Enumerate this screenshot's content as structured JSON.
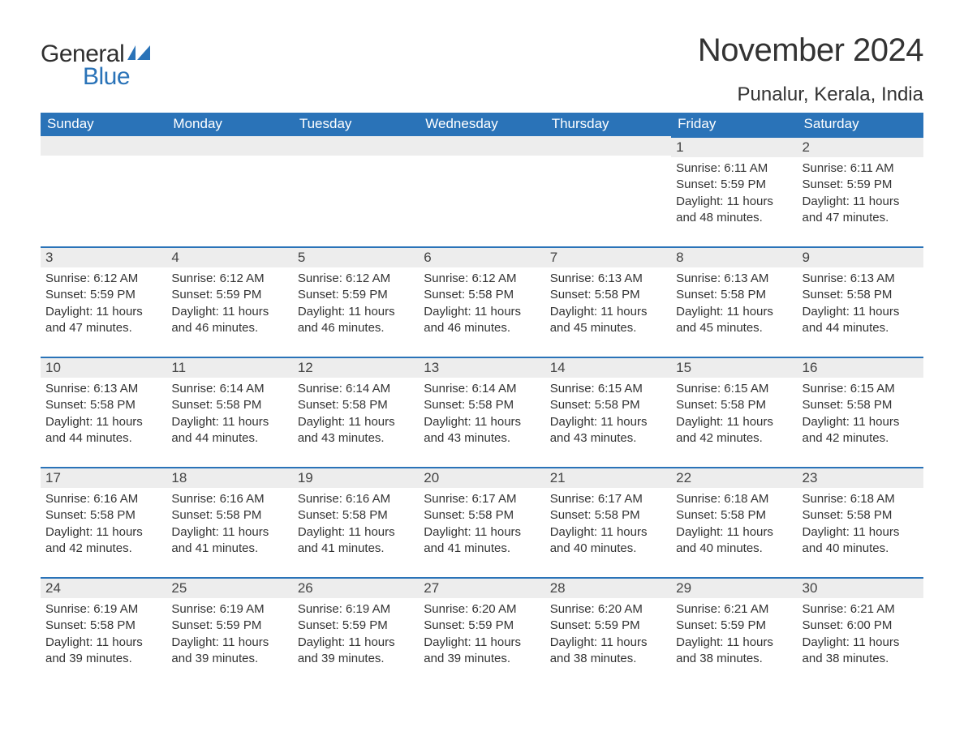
{
  "logo": {
    "general": "General",
    "blue": "Blue",
    "shape_color": "#2a73b8"
  },
  "header": {
    "month_title": "November 2024",
    "location": "Punalur, Kerala, India"
  },
  "colors": {
    "header_bg": "#2a73b8",
    "header_text": "#ffffff",
    "daynum_bg": "#ededed",
    "daynum_border": "#2a73b8",
    "body_text": "#333333",
    "page_bg": "#ffffff"
  },
  "typography": {
    "month_title_fontsize": 40,
    "location_fontsize": 24,
    "weekday_fontsize": 17,
    "daynum_fontsize": 17,
    "body_fontsize": 15,
    "font_family": "Segoe UI, Arial, sans-serif"
  },
  "calendar": {
    "weekdays": [
      "Sunday",
      "Monday",
      "Tuesday",
      "Wednesday",
      "Thursday",
      "Friday",
      "Saturday"
    ],
    "weeks": [
      [
        {
          "day": "",
          "sunrise": "",
          "sunset": "",
          "daylight": ""
        },
        {
          "day": "",
          "sunrise": "",
          "sunset": "",
          "daylight": ""
        },
        {
          "day": "",
          "sunrise": "",
          "sunset": "",
          "daylight": ""
        },
        {
          "day": "",
          "sunrise": "",
          "sunset": "",
          "daylight": ""
        },
        {
          "day": "",
          "sunrise": "",
          "sunset": "",
          "daylight": ""
        },
        {
          "day": "1",
          "sunrise": "Sunrise: 6:11 AM",
          "sunset": "Sunset: 5:59 PM",
          "daylight": "Daylight: 11 hours and 48 minutes."
        },
        {
          "day": "2",
          "sunrise": "Sunrise: 6:11 AM",
          "sunset": "Sunset: 5:59 PM",
          "daylight": "Daylight: 11 hours and 47 minutes."
        }
      ],
      [
        {
          "day": "3",
          "sunrise": "Sunrise: 6:12 AM",
          "sunset": "Sunset: 5:59 PM",
          "daylight": "Daylight: 11 hours and 47 minutes."
        },
        {
          "day": "4",
          "sunrise": "Sunrise: 6:12 AM",
          "sunset": "Sunset: 5:59 PM",
          "daylight": "Daylight: 11 hours and 46 minutes."
        },
        {
          "day": "5",
          "sunrise": "Sunrise: 6:12 AM",
          "sunset": "Sunset: 5:59 PM",
          "daylight": "Daylight: 11 hours and 46 minutes."
        },
        {
          "day": "6",
          "sunrise": "Sunrise: 6:12 AM",
          "sunset": "Sunset: 5:58 PM",
          "daylight": "Daylight: 11 hours and 46 minutes."
        },
        {
          "day": "7",
          "sunrise": "Sunrise: 6:13 AM",
          "sunset": "Sunset: 5:58 PM",
          "daylight": "Daylight: 11 hours and 45 minutes."
        },
        {
          "day": "8",
          "sunrise": "Sunrise: 6:13 AM",
          "sunset": "Sunset: 5:58 PM",
          "daylight": "Daylight: 11 hours and 45 minutes."
        },
        {
          "day": "9",
          "sunrise": "Sunrise: 6:13 AM",
          "sunset": "Sunset: 5:58 PM",
          "daylight": "Daylight: 11 hours and 44 minutes."
        }
      ],
      [
        {
          "day": "10",
          "sunrise": "Sunrise: 6:13 AM",
          "sunset": "Sunset: 5:58 PM",
          "daylight": "Daylight: 11 hours and 44 minutes."
        },
        {
          "day": "11",
          "sunrise": "Sunrise: 6:14 AM",
          "sunset": "Sunset: 5:58 PM",
          "daylight": "Daylight: 11 hours and 44 minutes."
        },
        {
          "day": "12",
          "sunrise": "Sunrise: 6:14 AM",
          "sunset": "Sunset: 5:58 PM",
          "daylight": "Daylight: 11 hours and 43 minutes."
        },
        {
          "day": "13",
          "sunrise": "Sunrise: 6:14 AM",
          "sunset": "Sunset: 5:58 PM",
          "daylight": "Daylight: 11 hours and 43 minutes."
        },
        {
          "day": "14",
          "sunrise": "Sunrise: 6:15 AM",
          "sunset": "Sunset: 5:58 PM",
          "daylight": "Daylight: 11 hours and 43 minutes."
        },
        {
          "day": "15",
          "sunrise": "Sunrise: 6:15 AM",
          "sunset": "Sunset: 5:58 PM",
          "daylight": "Daylight: 11 hours and 42 minutes."
        },
        {
          "day": "16",
          "sunrise": "Sunrise: 6:15 AM",
          "sunset": "Sunset: 5:58 PM",
          "daylight": "Daylight: 11 hours and 42 minutes."
        }
      ],
      [
        {
          "day": "17",
          "sunrise": "Sunrise: 6:16 AM",
          "sunset": "Sunset: 5:58 PM",
          "daylight": "Daylight: 11 hours and 42 minutes."
        },
        {
          "day": "18",
          "sunrise": "Sunrise: 6:16 AM",
          "sunset": "Sunset: 5:58 PM",
          "daylight": "Daylight: 11 hours and 41 minutes."
        },
        {
          "day": "19",
          "sunrise": "Sunrise: 6:16 AM",
          "sunset": "Sunset: 5:58 PM",
          "daylight": "Daylight: 11 hours and 41 minutes."
        },
        {
          "day": "20",
          "sunrise": "Sunrise: 6:17 AM",
          "sunset": "Sunset: 5:58 PM",
          "daylight": "Daylight: 11 hours and 41 minutes."
        },
        {
          "day": "21",
          "sunrise": "Sunrise: 6:17 AM",
          "sunset": "Sunset: 5:58 PM",
          "daylight": "Daylight: 11 hours and 40 minutes."
        },
        {
          "day": "22",
          "sunrise": "Sunrise: 6:18 AM",
          "sunset": "Sunset: 5:58 PM",
          "daylight": "Daylight: 11 hours and 40 minutes."
        },
        {
          "day": "23",
          "sunrise": "Sunrise: 6:18 AM",
          "sunset": "Sunset: 5:58 PM",
          "daylight": "Daylight: 11 hours and 40 minutes."
        }
      ],
      [
        {
          "day": "24",
          "sunrise": "Sunrise: 6:19 AM",
          "sunset": "Sunset: 5:58 PM",
          "daylight": "Daylight: 11 hours and 39 minutes."
        },
        {
          "day": "25",
          "sunrise": "Sunrise: 6:19 AM",
          "sunset": "Sunset: 5:59 PM",
          "daylight": "Daylight: 11 hours and 39 minutes."
        },
        {
          "day": "26",
          "sunrise": "Sunrise: 6:19 AM",
          "sunset": "Sunset: 5:59 PM",
          "daylight": "Daylight: 11 hours and 39 minutes."
        },
        {
          "day": "27",
          "sunrise": "Sunrise: 6:20 AM",
          "sunset": "Sunset: 5:59 PM",
          "daylight": "Daylight: 11 hours and 39 minutes."
        },
        {
          "day": "28",
          "sunrise": "Sunrise: 6:20 AM",
          "sunset": "Sunset: 5:59 PM",
          "daylight": "Daylight: 11 hours and 38 minutes."
        },
        {
          "day": "29",
          "sunrise": "Sunrise: 6:21 AM",
          "sunset": "Sunset: 5:59 PM",
          "daylight": "Daylight: 11 hours and 38 minutes."
        },
        {
          "day": "30",
          "sunrise": "Sunrise: 6:21 AM",
          "sunset": "Sunset: 6:00 PM",
          "daylight": "Daylight: 11 hours and 38 minutes."
        }
      ]
    ]
  }
}
